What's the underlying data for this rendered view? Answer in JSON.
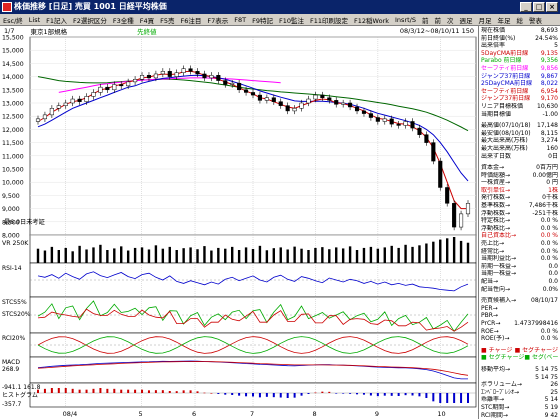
{
  "window": {
    "title": "株価推移 [日足] 売買 1001 日経平均株価",
    "buttons": [
      "_",
      "□",
      "×"
    ]
  },
  "menu": [
    "Esc/終",
    "List",
    "F1記入",
    "F2選択区分",
    "F3全種",
    "F4買",
    "F5売",
    "F6注目",
    "F7表示",
    "F8T",
    "F9特記",
    "F10監注",
    "F11印刷設定",
    "F12稲Work",
    "Insrt/S",
    "前",
    "前",
    "次",
    "週足",
    "月足",
    "年足",
    "総",
    "警表"
  ],
  "info": {
    "page": "1/7",
    "name": "東京1部規格",
    "market": "先終値",
    "range": "08/3/12~08/10/11 150"
  },
  "colors": {
    "ma_short": "#cc0000",
    "ma_mid": "#0000cc",
    "ma_long": "#006600",
    "line": "#ff00ff",
    "volume": "#000000",
    "rsi_green": "#00aa00"
  },
  "chart_data": {
    "type": "candlestick",
    "ylim": [
      8000,
      15500
    ],
    "y_ticks": [
      "15,500",
      "15,000",
      "14,500",
      "14,000",
      "13,500",
      "13,000",
      "12,500",
      "12,000",
      "11,500",
      "11,000",
      "10,500",
      "10,000",
      "9,500",
      "9,000",
      "8,500",
      "8,000"
    ],
    "x_ticks": [
      "08/4",
      "5",
      "6",
      "7",
      "8",
      "9",
      "10"
    ],
    "x_tick_positions": [
      0.08,
      0.25,
      0.37,
      0.5,
      0.64,
      0.78,
      0.92
    ],
    "close": [
      12400,
      12550,
      12800,
      12900,
      13000,
      13150,
      13050,
      13250,
      13400,
      13600,
      13500,
      13700,
      13650,
      13800,
      13900,
      14050,
      13950,
      14100,
      14200,
      14000,
      14150,
      14300,
      14200,
      14100,
      13950,
      14050,
      13850,
      13700,
      13750,
      13500,
      13400,
      13300,
      13100,
      13200,
      13050,
      12900,
      12700,
      12800,
      13000,
      13150,
      13300,
      13200,
      13100,
      12950,
      13000,
      12850,
      12700,
      12600,
      12450,
      12300,
      12400,
      12200,
      12150,
      12300,
      12050,
      11800,
      11500,
      10800,
      9800,
      9200,
      8300,
      8800,
      9200
    ],
    "ma_short": [
      12300,
      12450,
      12650,
      12800,
      12950,
      13050,
      13100,
      13200,
      13350,
      13500,
      13550,
      13650,
      13700,
      13800,
      13850,
      13950,
      13980,
      14050,
      14100,
      14080,
      14100,
      14180,
      14200,
      14150,
      14050,
      14000,
      13900,
      13800,
      13700,
      13580,
      13450,
      13350,
      13200,
      13150,
      13050,
      12950,
      12850,
      12800,
      12900,
      13000,
      13100,
      13150,
      13120,
      13000,
      12980,
      12900,
      12800,
      12700,
      12550,
      12420,
      12380,
      12300,
      12220,
      12200,
      12100,
      11950,
      11700,
      11300,
      10700,
      10000,
      9300,
      9000,
      9000
    ],
    "ma_mid": [
      12100,
      12200,
      12350,
      12500,
      12650,
      12800,
      12900,
      13000,
      13100,
      13200,
      13300,
      13400,
      13500,
      13600,
      13650,
      13750,
      13820,
      13880,
      13930,
      13960,
      13990,
      14020,
      14040,
      14050,
      14030,
      14000,
      13960,
      13900,
      13820,
      13740,
      13650,
      13560,
      13460,
      13380,
      13300,
      13220,
      13150,
      13080,
      13060,
      13060,
      13070,
      13070,
      13050,
      13020,
      12990,
      12950,
      12880,
      12800,
      12700,
      12610,
      12540,
      12470,
      12400,
      12330,
      12250,
      12150,
      12000,
      11800,
      11500,
      11150,
      10750,
      10350,
      10050
    ],
    "ma_long": [
      14000,
      13950,
      13900,
      13850,
      13820,
      13800,
      13780,
      13770,
      13760,
      13760,
      13770,
      13790,
      13810,
      13830,
      13850,
      13870,
      13880,
      13890,
      13900,
      13900,
      13890,
      13870,
      13850,
      13820,
      13790,
      13760,
      13720,
      13680,
      13640,
      13600,
      13560,
      13530,
      13500,
      13470,
      13450,
      13420,
      13400,
      13380,
      13360,
      13340,
      13320,
      13300,
      13270,
      13240,
      13210,
      13180,
      13140,
      13100,
      13060,
      13020,
      12980,
      12930,
      12880,
      12830,
      12780,
      12720,
      12650,
      12560,
      12460,
      12350,
      12220,
      12090,
      11950
    ],
    "magenta_line": [
      13400,
      13450,
      13500,
      13550,
      13600,
      13650,
      13700,
      13730,
      13760,
      13790,
      13820,
      13840,
      13860,
      13880,
      13900,
      13910,
      13920,
      13930,
      13940,
      13950,
      13950,
      13950,
      13940,
      13930,
      13920,
      13910,
      13890,
      13870,
      13850,
      13830,
      13810,
      13790,
      13770
    ],
    "volume": [
      0.55,
      0.48,
      0.62,
      0.5,
      0.58,
      0.45,
      0.66,
      0.52,
      0.6,
      0.7,
      0.5,
      0.56,
      0.64,
      0.48,
      0.58,
      0.6,
      0.52,
      0.68,
      0.55,
      0.62,
      0.5,
      0.57,
      0.6,
      0.53,
      0.65,
      0.48,
      0.58,
      0.55,
      0.62,
      0.5,
      0.6,
      0.54,
      0.66,
      0.49,
      0.57,
      0.6,
      0.52,
      0.63,
      0.55,
      0.5,
      0.58,
      0.61,
      0.53,
      0.6,
      0.56,
      0.64,
      0.5,
      0.58,
      0.62,
      0.55,
      0.6,
      0.66,
      0.58,
      0.7,
      0.62,
      0.68,
      0.75,
      0.82,
      0.9,
      0.95,
      1.0,
      0.85,
      0.78
    ],
    "rsi": [
      62,
      58,
      66,
      55,
      70,
      60,
      52,
      68,
      74,
      63,
      57,
      65,
      72,
      60,
      54,
      66,
      70,
      58,
      50,
      62,
      46,
      40,
      48,
      42,
      36,
      44,
      38,
      52,
      58,
      48,
      55,
      62,
      50,
      44,
      58,
      64,
      52,
      46,
      60,
      55,
      48,
      42,
      56,
      50,
      44,
      52,
      48,
      40,
      46,
      38,
      44,
      36,
      40,
      34,
      38,
      30,
      28,
      26,
      22,
      20,
      18,
      30,
      38
    ],
    "volume_label": "VR 250K",
    "overlay_labels": {
      "day_count": "最6.9日未考証",
      "rsi": "RSI-14",
      "stcs": "STCS5%",
      "stcl": "STCS20%",
      "rcr": "RCI20%",
      "macd": "MACD",
      "hist": "ヒストグラム"
    },
    "macd_ticks": [
      "268.9",
      "-941.1 161.8",
      "-357.7"
    ]
  },
  "panel": {
    "rows1": [
      {
        "k": "現在株価",
        "v": "8,693"
      },
      {
        "k": "前日終値(%)",
        "v": "24.54%"
      },
      {
        "k": "出来倍率",
        "v": "5"
      },
      {
        "k": "5DayCMA前日線",
        "v": "9,135",
        "c": "#cc0000"
      },
      {
        "k": "Parabo 前日線",
        "v": "9,356",
        "c": "#00aa00"
      },
      {
        "k": "セーフティ前日線",
        "v": "9,856",
        "c": "#ff00ff"
      },
      {
        "k": "ジャンプ37前日線",
        "v": "9,867",
        "c": "#0000cc"
      },
      {
        "k": "25DayCMA前日線",
        "v": "8,022",
        "c": "#0000cc"
      },
      {
        "k": "セーフティ前日線",
        "v": "6,954",
        "c": "#cc0000"
      },
      {
        "k": "ジャンプ37前日線",
        "v": "9,170",
        "c": "#cc0000"
      },
      {
        "k": "リニア目標株価",
        "v": "10,630"
      },
      {
        "k": "当期目標値",
        "v": "-1.00"
      }
    ],
    "rows2": [
      {
        "k": "最高値(07/10/18)",
        "v": "17,148"
      },
      {
        "k": "最安値(08/10/10)",
        "v": "8,115"
      },
      {
        "k": "最大出来高(万株)",
        "v": "3,274"
      },
      {
        "k": "最大出来高(万株)",
        "v": "160"
      },
      {
        "k": "出来ず日数",
        "v": "0日"
      }
    ],
    "rows3": [
      {
        "k": "資本金→",
        "v": "0百万円"
      },
      {
        "k": "時価総額→",
        "v": "0.00億円"
      },
      {
        "k": "一株資産→",
        "v": "0 円"
      },
      {
        "k": "取引単位→",
        "v": "1株",
        "c": "#cc0000"
      },
      {
        "k": "発行株数→",
        "v": "0千株"
      },
      {
        "k": "基準株数→",
        "v": "7,486千株"
      },
      {
        "k": "浮動株数→",
        "v": "-251千株"
      },
      {
        "k": "特定株比→",
        "v": "0.0 %"
      },
      {
        "k": "浮動株比→",
        "v": "0.0 %"
      },
      {
        "k": "自己資本比→",
        "v": "0.0 %",
        "c": "#cc0000"
      },
      {
        "k": "売上比→",
        "v": "0.0 %"
      },
      {
        "k": "経常比→",
        "v": "0.0 %"
      },
      {
        "k": "当期利益比→",
        "v": "0.0 %"
      },
      {
        "k": "前期一株益→",
        "v": "0.0"
      },
      {
        "k": "当期一株益→",
        "v": "0.0"
      },
      {
        "k": "配当→",
        "v": "0.0"
      },
      {
        "k": "配当性向→",
        "v": "0.0%"
      }
    ],
    "rows4": [
      {
        "k": "売買候補入→",
        "v": "08/10/17"
      },
      {
        "k": "PER→",
        "v": ""
      },
      {
        "k": "PBR→",
        "v": ""
      },
      {
        "k": "PrCR→",
        "v": "1.4737998416"
      },
      {
        "k": "ROE→",
        "v": "0.0 %"
      },
      {
        "k": "ROE(予)→",
        "v": "0.0 %"
      }
    ],
    "legend": [
      {
        "k": "■ チャージ",
        "v": "■ セグチャージ",
        "c": "#cc0000"
      },
      {
        "k": "■ セグチャージ",
        "v": "■ セグ(ベーシ)",
        "c": "#00aa00"
      }
    ],
    "rows5": [
      {
        "k": "移動平均→",
        "v": "5  14  75"
      },
      {
        "k": "",
        "v": "5  14  75"
      },
      {
        "k": "ボラリューム→",
        "v": "26"
      },
      {
        "k": "ｴﾝﾍﾞﾛｰﾌﾟﾚｼｵ→",
        "v": "25"
      },
      {
        "k": "乖離率→",
        "v": "5  14"
      },
      {
        "k": "STC期間→",
        "v": "5  19"
      },
      {
        "k": "RCI期間→",
        "v": "9  42"
      }
    ]
  }
}
